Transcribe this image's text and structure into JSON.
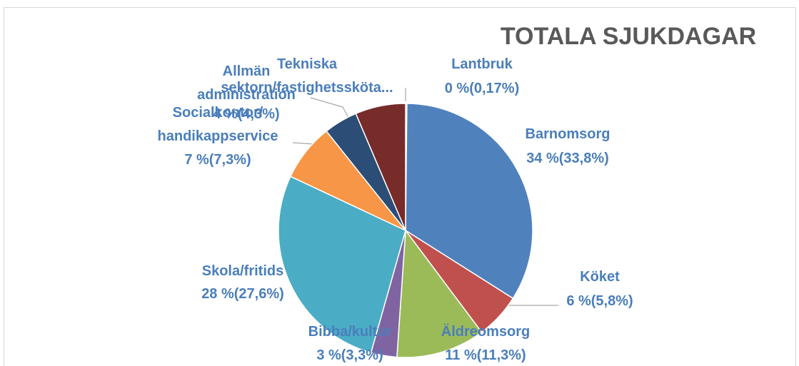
{
  "chart_data": {
    "type": "pie",
    "title": "TOTALA SJUKDAGAR",
    "categories": [
      "Lantbruk",
      "Barnomsorg",
      "Köket",
      "Äldreomsorg",
      "Bibba/kultur",
      "Skola/fritids",
      "Socialkontor/ handikappservice",
      "Allmän administration",
      "Tekniska sektorn/fastighetsskötа..."
    ],
    "values": [
      0.17,
      33.8,
      5.8,
      11.3,
      3.3,
      27.6,
      7.3,
      4.3,
      6.4
    ],
    "value_labels": [
      "0 %(0,17%)",
      "34 %(33,8%)",
      "6 %(5,8%)",
      "11 %(11,3%)",
      "3 %(3,3%)",
      "28 %(27,6%)",
      "7 %(7,3%)",
      "4 %(4,3%)",
      null
    ],
    "colors": [
      "#5f7530",
      "#4f81bd",
      "#c0504d",
      "#9bbb59",
      "#8064a2",
      "#4bacc6",
      "#f79646",
      "#2c4d75",
      "#772c2a"
    ]
  }
}
